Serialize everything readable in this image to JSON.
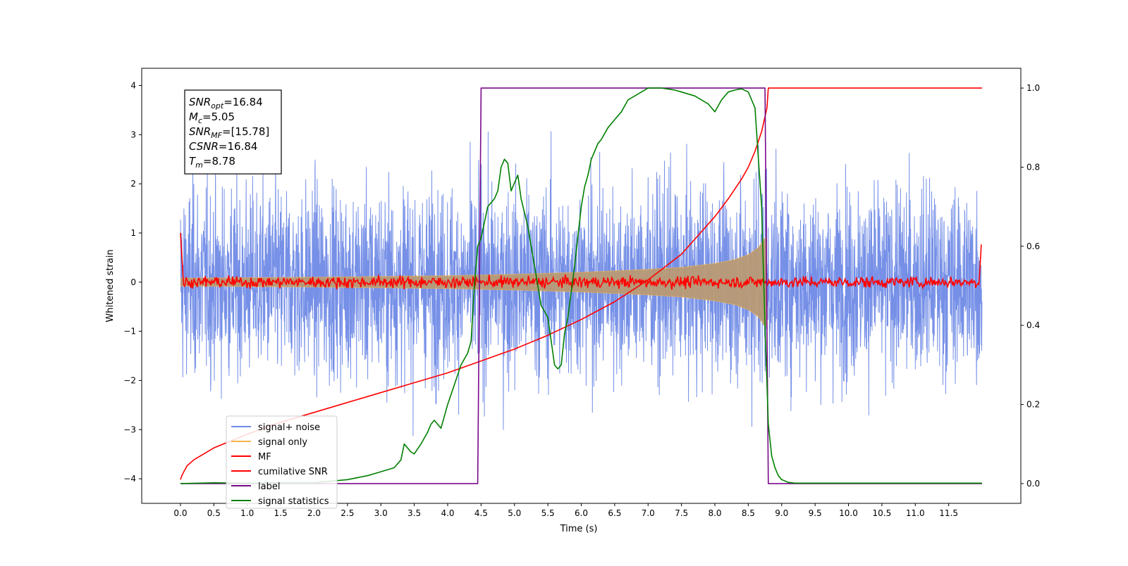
{
  "chart_data": {
    "type": "line",
    "xlabel": "Time (s)",
    "ylabel": "Whitened strain",
    "xlim": [
      -0.58,
      12.58
    ],
    "ylim": [
      -4.5,
      4.35
    ],
    "ylim_right": [
      -0.05,
      1.05
    ],
    "x_ticks": [
      "0.0",
      "0.5",
      "1.0",
      "1.5",
      "2.0",
      "2.5",
      "3.0",
      "3.5",
      "4.0",
      "4.5",
      "5.0",
      "5.5",
      "6.0",
      "6.5",
      "7.0",
      "7.5",
      "8.0",
      "8.5",
      "9.0",
      "9.5",
      "10.0",
      "10.5",
      "11.0",
      "11.5"
    ],
    "y_ticks": [
      "4",
      "3",
      "2",
      "1",
      "0",
      "−1",
      "−2",
      "−3",
      "−4"
    ],
    "y_ticks_right": [
      "1.0",
      "0.8",
      "0.6",
      "0.4",
      "0.2",
      "0.0"
    ],
    "grid": false,
    "legend_position": "bottom-left",
    "annotation": {
      "lines": [
        {
          "base": "SNR",
          "sub": "opt",
          "value": "=16.84"
        },
        {
          "base": "M",
          "sub": "c",
          "value": "=5.05"
        },
        {
          "base": "SNR",
          "sub": "MF",
          "value": "=[15.78]"
        },
        {
          "base": "CSNR",
          "sub": "",
          "value": "=16.84"
        },
        {
          "base": "T",
          "sub": "m",
          "value": "=8.78"
        }
      ]
    },
    "series": [
      {
        "name": "signal+ noise",
        "color": "#6f8ae6",
        "axis": "left",
        "kind": "noise",
        "x_range": [
          0,
          12
        ],
        "sigma": 1.0,
        "signal_end": 8.75
      },
      {
        "name": "signal only",
        "color": "#f5b54a",
        "axis": "left",
        "kind": "chirp",
        "x_range": [
          0,
          8.78
        ],
        "envelope_x": [
          0,
          2,
          4,
          5,
          6,
          7,
          7.5,
          8,
          8.3,
          8.5,
          8.65,
          8.75
        ],
        "envelope_y": [
          0.08,
          0.1,
          0.13,
          0.16,
          0.2,
          0.26,
          0.3,
          0.38,
          0.46,
          0.56,
          0.7,
          0.9
        ]
      },
      {
        "name": "MF",
        "color": "#ff0000",
        "axis": "left",
        "kind": "mf",
        "x_range": [
          0,
          12
        ],
        "edge_value": 1.0,
        "noise_level": 0.06
      },
      {
        "name": "cumilative SNR",
        "color": "#ff0000",
        "axis": "right",
        "x": [
          0,
          0.02,
          0.05,
          0.1,
          0.2,
          0.5,
          1,
          1.5,
          2,
          2.5,
          3,
          3.5,
          4,
          4.5,
          5,
          5.5,
          6,
          6.5,
          7,
          7.5,
          8,
          8.2,
          8.4,
          8.5,
          8.6,
          8.7,
          8.78,
          8.8,
          12
        ],
        "y": [
          0.01,
          0.02,
          0.03,
          0.045,
          0.06,
          0.09,
          0.125,
          0.155,
          0.18,
          0.205,
          0.23,
          0.255,
          0.28,
          0.31,
          0.34,
          0.375,
          0.415,
          0.46,
          0.515,
          0.58,
          0.675,
          0.72,
          0.77,
          0.8,
          0.84,
          0.89,
          0.95,
          1.0,
          1.0
        ]
      },
      {
        "name": "label",
        "color": "#7a0a8a",
        "axis": "right",
        "x": [
          0,
          4.45,
          4.5,
          8.75,
          8.8,
          12
        ],
        "y": [
          0,
          0,
          1,
          1,
          0,
          0
        ]
      },
      {
        "name": "signal statistics",
        "color": "#008000",
        "axis": "right",
        "x": [
          0,
          0.5,
          1,
          1.5,
          2,
          2.5,
          2.8,
          3,
          3.2,
          3.3,
          3.35,
          3.45,
          3.5,
          3.6,
          3.7,
          3.75,
          3.8,
          3.9,
          4.0,
          4.1,
          4.2,
          4.3,
          4.35,
          4.4,
          4.45,
          4.5,
          4.6,
          4.7,
          4.75,
          4.8,
          4.85,
          4.9,
          4.95,
          5.0,
          5.05,
          5.1,
          5.2,
          5.3,
          5.4,
          5.5,
          5.6,
          5.65,
          5.7,
          5.75,
          5.8,
          5.9,
          6.0,
          6.05,
          6.1,
          6.15,
          6.2,
          6.25,
          6.3,
          6.4,
          6.5,
          6.6,
          6.7,
          6.8,
          6.9,
          7.0,
          7.2,
          7.4,
          7.5,
          7.7,
          7.9,
          8.0,
          8.1,
          8.2,
          8.3,
          8.4,
          8.5,
          8.6,
          8.7,
          8.75,
          8.8,
          8.85,
          8.9,
          8.95,
          9.0,
          9.1,
          9.2,
          12
        ],
        "y": [
          0,
          0.002,
          0.001,
          0.002,
          0.002,
          0.01,
          0.02,
          0.03,
          0.04,
          0.06,
          0.1,
          0.08,
          0.075,
          0.1,
          0.13,
          0.15,
          0.16,
          0.14,
          0.2,
          0.25,
          0.3,
          0.33,
          0.36,
          0.5,
          0.6,
          0.62,
          0.7,
          0.72,
          0.74,
          0.8,
          0.82,
          0.81,
          0.74,
          0.76,
          0.78,
          0.72,
          0.65,
          0.55,
          0.45,
          0.42,
          0.3,
          0.29,
          0.3,
          0.38,
          0.42,
          0.55,
          0.7,
          0.75,
          0.78,
          0.82,
          0.84,
          0.86,
          0.87,
          0.9,
          0.92,
          0.94,
          0.97,
          0.98,
          0.99,
          1.0,
          1.0,
          0.995,
          0.99,
          0.98,
          0.96,
          0.94,
          0.97,
          0.99,
          0.995,
          0.998,
          0.99,
          0.95,
          0.7,
          0.4,
          0.15,
          0.07,
          0.04,
          0.02,
          0.01,
          0.003,
          0.001,
          0.001
        ]
      }
    ]
  }
}
